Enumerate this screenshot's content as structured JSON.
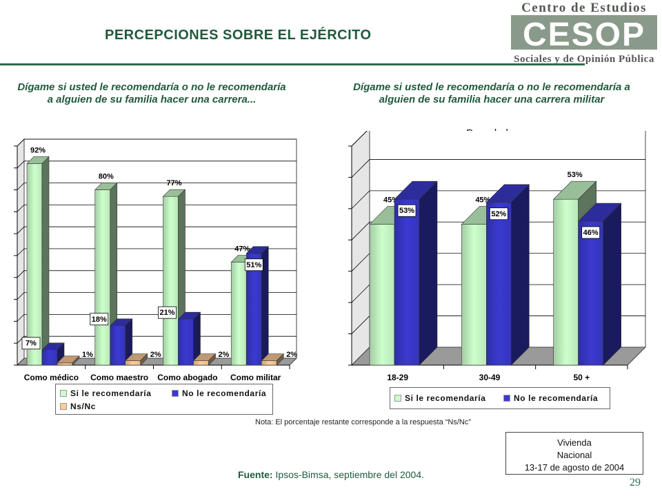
{
  "header": {
    "title": "PERCEPCIONES SOBRE EL EJÉRCITO",
    "logo_line1": "Centro de Estudios",
    "logo_mark": "CESOP",
    "logo_line2": "Sociales y de Opinión Pública"
  },
  "questions": {
    "left": "Dígame si usted le recomendaría o no le recomendaría a alguien de su familia hacer una carrera...",
    "right": "Dígame si usted le recomendaría o no le recomendaría a alguien de su familia hacer una carrera militar",
    "right_subtitle": "Por edad"
  },
  "chart_data": [
    {
      "type": "bar",
      "categories": [
        "Como médico",
        "Como maestro",
        "Como abogado",
        "Como militar"
      ],
      "series": [
        {
          "name": "Si le recomendaría",
          "values": [
            92,
            80,
            77,
            47
          ],
          "labels": [
            "92%",
            "80%",
            "77%",
            "47%"
          ],
          "color": "#ccffcc"
        },
        {
          "name": "No le recomendaría",
          "values": [
            7,
            18,
            21,
            51
          ],
          "labels": [
            "7%",
            "18%",
            "21%",
            "51%"
          ],
          "color": "#3a3ad0"
        },
        {
          "name": "Ns/Nc",
          "values": [
            1,
            2,
            2,
            2
          ],
          "labels": [
            "1%",
            "2%",
            "2%",
            "2%"
          ],
          "color": "#ffcc99"
        }
      ],
      "ylim": [
        0,
        100
      ],
      "grid": true,
      "legend": "bottom"
    },
    {
      "type": "bar",
      "categories": [
        "18-29",
        "30-49",
        "50 +"
      ],
      "series": [
        {
          "name": "Si le recomendaría",
          "values": [
            45,
            45,
            53
          ],
          "labels": [
            "45%",
            "45%",
            "53%"
          ],
          "color": "#ccffcc"
        },
        {
          "name": "No le recomendaría",
          "values": [
            53,
            52,
            46
          ],
          "labels": [
            "53%",
            "52%",
            "46%"
          ],
          "color": "#3a3ad0"
        }
      ],
      "ylim": [
        0,
        70
      ],
      "grid": true,
      "legend": "bottom"
    }
  ],
  "footer": {
    "note": "Nota: El porcentaje restante corresponde a la respuesta “Ns/Nc”",
    "source_label": "Fuente:",
    "source_text": "Ipsos-Bimsa, septiembre del 2004.",
    "box_line1": "Vivienda",
    "box_line2": "Nacional",
    "box_line3": "13-17 de agosto de 2004",
    "page_number": "29"
  }
}
